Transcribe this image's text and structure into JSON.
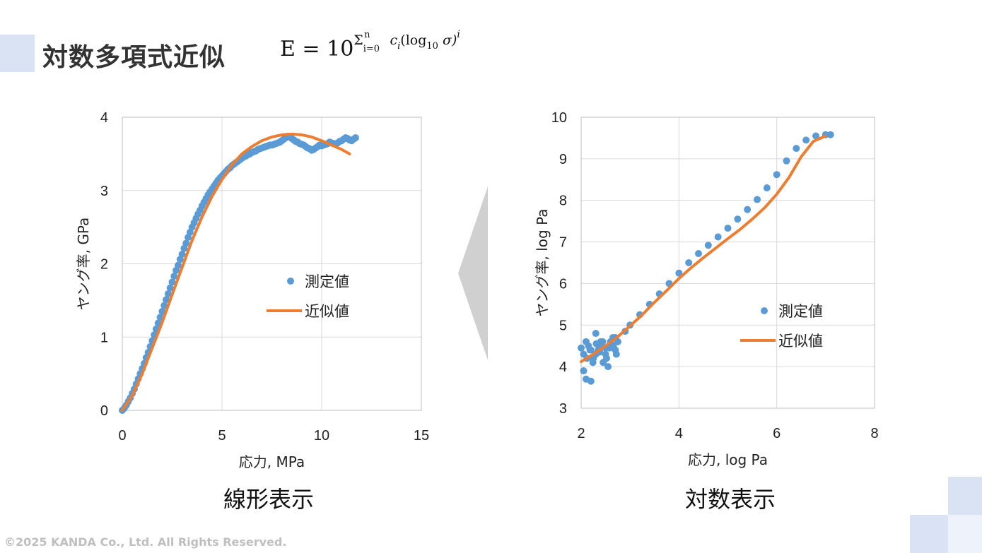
{
  "slide": {
    "title": "対数多項式近似",
    "formula": {
      "lhs": "E = 10",
      "sum": "Σ",
      "sum_sub": "i=0",
      "sum_sup": "n",
      "body": " c",
      "body_sub": "i",
      "paren": "(log",
      "paren_sub": "10",
      "paren_end": " σ)",
      "exp": "i"
    },
    "copyright": "©2025 KANDA Co., Ltd. All Rights Reserved.",
    "colors": {
      "accent": "#dae3f3",
      "measured": "#5b9bd5",
      "fit": "#ed7d31",
      "arrow": "#d0d0d0"
    }
  },
  "chart_data": [
    {
      "type": "scatter",
      "caption": "線形表示",
      "xlabel": "応力, MPa",
      "ylabel": "ヤング率, GPa",
      "xlim": [
        0,
        15
      ],
      "ylim": [
        0,
        4
      ],
      "xticks": [
        "0",
        "5",
        "10",
        "15"
      ],
      "yticks": [
        "0",
        "1",
        "2",
        "3",
        "4"
      ],
      "grid": true,
      "legend_position": "center-right",
      "legend": [
        "測定値",
        "近似値"
      ],
      "series": [
        {
          "name": "測定値",
          "kind": "points",
          "x": [
            0.0,
            0.1,
            0.2,
            0.3,
            0.4,
            0.5,
            0.6,
            0.7,
            0.8,
            0.9,
            1.0,
            1.1,
            1.2,
            1.3,
            1.4,
            1.5,
            1.6,
            1.7,
            1.8,
            1.9,
            2.0,
            2.1,
            2.2,
            2.3,
            2.4,
            2.5,
            2.6,
            2.7,
            2.8,
            2.9,
            3.0,
            3.1,
            3.2,
            3.3,
            3.4,
            3.5,
            3.6,
            3.7,
            3.8,
            3.9,
            4.0,
            4.1,
            4.2,
            4.3,
            4.4,
            4.5,
            4.6,
            4.7,
            4.8,
            4.9,
            5.0,
            5.1,
            5.2,
            5.3,
            5.4,
            5.5,
            5.6,
            5.7,
            5.8,
            5.9,
            6.0,
            6.1,
            6.2,
            6.3,
            6.4,
            6.5,
            6.6,
            6.7,
            6.8,
            6.9,
            7.0,
            7.1,
            7.2,
            7.3,
            7.4,
            7.5,
            7.6,
            7.7,
            7.8,
            7.9,
            8.0,
            8.1,
            8.2,
            8.3,
            8.4,
            8.5,
            8.6,
            8.7,
            8.8,
            8.9,
            9.0,
            9.1,
            9.2,
            9.3,
            9.4,
            9.5,
            9.6,
            9.7,
            9.8,
            9.9,
            10.0,
            10.1,
            10.2,
            10.3,
            10.4,
            10.5,
            10.6,
            10.7,
            10.8,
            10.9,
            11.0,
            11.1,
            11.2,
            11.3,
            11.4,
            11.5,
            11.6,
            11.7
          ],
          "y": [
            0.0,
            0.03,
            0.07,
            0.12,
            0.17,
            0.23,
            0.29,
            0.36,
            0.43,
            0.5,
            0.57,
            0.64,
            0.72,
            0.79,
            0.87,
            0.95,
            1.03,
            1.11,
            1.19,
            1.27,
            1.35,
            1.43,
            1.51,
            1.59,
            1.67,
            1.75,
            1.83,
            1.91,
            1.98,
            2.06,
            2.13,
            2.21,
            2.28,
            2.36,
            2.43,
            2.5,
            2.56,
            2.62,
            2.68,
            2.73,
            2.79,
            2.84,
            2.89,
            2.94,
            2.98,
            3.02,
            3.06,
            3.1,
            3.14,
            3.17,
            3.2,
            3.23,
            3.26,
            3.29,
            3.31,
            3.34,
            3.36,
            3.38,
            3.4,
            3.42,
            3.44,
            3.46,
            3.47,
            3.49,
            3.5,
            3.52,
            3.53,
            3.54,
            3.56,
            3.57,
            3.58,
            3.59,
            3.6,
            3.61,
            3.62,
            3.62,
            3.63,
            3.64,
            3.65,
            3.66,
            3.68,
            3.7,
            3.72,
            3.74,
            3.73,
            3.71,
            3.69,
            3.67,
            3.66,
            3.64,
            3.63,
            3.62,
            3.6,
            3.58,
            3.57,
            3.55,
            3.56,
            3.58,
            3.6,
            3.62,
            3.61,
            3.62,
            3.63,
            3.64,
            3.66,
            3.65,
            3.64,
            3.63,
            3.65,
            3.67,
            3.68,
            3.7,
            3.72,
            3.71,
            3.69,
            3.68,
            3.7,
            3.72
          ]
        },
        {
          "name": "近似値",
          "kind": "line",
          "x": [
            0.0,
            0.5,
            1.0,
            1.5,
            2.0,
            2.5,
            3.0,
            3.5,
            4.0,
            4.5,
            5.0,
            5.5,
            6.0,
            6.5,
            7.0,
            7.5,
            8.0,
            8.5,
            9.0,
            9.5,
            10.0,
            10.5,
            11.0,
            11.4
          ],
          "y": [
            0.0,
            0.2,
            0.5,
            0.85,
            1.2,
            1.58,
            1.95,
            2.32,
            2.64,
            2.92,
            3.15,
            3.35,
            3.5,
            3.6,
            3.68,
            3.73,
            3.76,
            3.77,
            3.76,
            3.73,
            3.68,
            3.62,
            3.56,
            3.5
          ]
        }
      ]
    },
    {
      "type": "scatter",
      "caption": "対数表示",
      "xlabel": "応力, log Pa",
      "ylabel": "ヤング率, log Pa",
      "xlim": [
        2,
        8
      ],
      "ylim": [
        3,
        10
      ],
      "xticks": [
        "2",
        "4",
        "6",
        "8"
      ],
      "yticks": [
        "3",
        "4",
        "5",
        "6",
        "7",
        "8",
        "9",
        "10"
      ],
      "grid": true,
      "legend_position": "bottom-right",
      "legend": [
        "測定値",
        "近似値"
      ],
      "series": [
        {
          "name": "測定値",
          "kind": "points",
          "x": [
            2.0,
            2.05,
            2.1,
            2.15,
            2.2,
            2.25,
            2.3,
            2.35,
            2.4,
            2.45,
            2.5,
            2.55,
            2.6,
            2.65,
            2.7,
            2.75,
            2.05,
            2.12,
            2.18,
            2.24,
            2.31,
            2.38,
            2.44,
            2.52,
            2.58,
            2.66,
            2.72,
            2.1,
            2.2,
            2.3,
            2.4,
            2.5,
            2.6,
            2.7,
            2.9,
            3.0,
            3.2,
            3.4,
            3.6,
            3.8,
            4.0,
            4.2,
            4.4,
            4.6,
            4.8,
            5.0,
            5.2,
            5.4,
            5.6,
            5.8,
            6.0,
            6.2,
            6.4,
            6.6,
            6.8,
            7.0,
            7.1
          ],
          "y": [
            4.45,
            4.3,
            3.7,
            4.5,
            3.65,
            4.2,
            4.8,
            4.4,
            4.6,
            4.1,
            4.3,
            4.0,
            4.5,
            4.7,
            4.4,
            4.6,
            3.9,
            4.2,
            4.4,
            4.1,
            4.55,
            4.35,
            4.6,
            4.2,
            4.45,
            4.5,
            4.3,
            4.6,
            4.4,
            4.3,
            4.5,
            4.45,
            4.6,
            4.7,
            4.85,
            5.0,
            5.25,
            5.5,
            5.75,
            6.0,
            6.25,
            6.5,
            6.72,
            6.92,
            7.12,
            7.33,
            7.55,
            7.78,
            8.02,
            8.3,
            8.62,
            8.95,
            9.25,
            9.45,
            9.55,
            9.58,
            9.58
          ]
        },
        {
          "name": "近似値",
          "kind": "line",
          "x": [
            2.0,
            2.25,
            2.5,
            2.75,
            3.0,
            3.25,
            3.5,
            3.75,
            4.0,
            4.25,
            4.5,
            4.75,
            5.0,
            5.25,
            5.5,
            5.75,
            6.0,
            6.25,
            6.5,
            6.75,
            7.0
          ],
          "y": [
            4.12,
            4.3,
            4.5,
            4.72,
            4.98,
            5.25,
            5.55,
            5.83,
            6.12,
            6.38,
            6.62,
            6.85,
            7.08,
            7.3,
            7.55,
            7.82,
            8.15,
            8.55,
            9.05,
            9.42,
            9.55
          ]
        }
      ]
    }
  ]
}
